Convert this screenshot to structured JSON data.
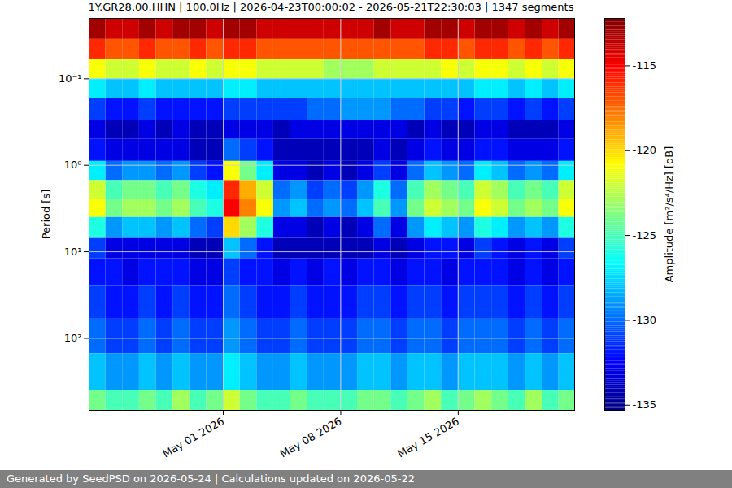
{
  "chart_data": {
    "type": "heatmap",
    "title": "1Y.GR28.00.HHN | 100.0Hz | 2026-04-23T00:00:02 - 2026-05-21T22:30:03 | 1347 segments",
    "footer": "Generated by SeedPSD on 2026-05-24 | Calculations updated on 2026-05-22",
    "ylabel": "Period [s]",
    "colorbar_label": "Amplitude [m²/s⁴/Hz] [dB]",
    "log": "y",
    "grid": true,
    "xlim": [
      "2026-04-23T00:00:02",
      "2026-05-21T22:30:03"
    ],
    "xticks": [
      {
        "value": "2026-05-01",
        "label": "May 01 2026"
      },
      {
        "value": "2026-05-08",
        "label": "May 08 2026"
      },
      {
        "value": "2026-05-15",
        "label": "May 15 2026"
      }
    ],
    "ylim": [
      0.02,
      680
    ],
    "yticks": [
      {
        "value": 0.1,
        "label": "10⁻¹"
      },
      {
        "value": 1,
        "label": "10⁰"
      },
      {
        "value": 10,
        "label": "10¹"
      },
      {
        "value": 100,
        "label": "10²"
      }
    ],
    "colorbar_range": [
      -135.3,
      -112.2
    ],
    "colorbar_ticks": [
      -135,
      -130,
      -125,
      -120,
      -115
    ],
    "x_edges": [
      "2026-04-23",
      "2026-04-24",
      "2026-04-25",
      "2026-04-26",
      "2026-04-27",
      "2026-04-28",
      "2026-04-29",
      "2026-04-30",
      "2026-05-01",
      "2026-05-02",
      "2026-05-03",
      "2026-05-04",
      "2026-05-05",
      "2026-05-06",
      "2026-05-07",
      "2026-05-08",
      "2026-05-09",
      "2026-05-10",
      "2026-05-11",
      "2026-05-12",
      "2026-05-13",
      "2026-05-14",
      "2026-05-15",
      "2026-05-16",
      "2026-05-17",
      "2026-05-18",
      "2026-05-19",
      "2026-05-20",
      "2026-05-21",
      "2026-05-21T22:30:03"
    ],
    "period_edges": [
      0.02,
      0.035,
      0.06,
      0.1,
      0.17,
      0.3,
      0.5,
      0.9,
      1.5,
      2.5,
      4,
      7,
      12,
      25,
      60,
      150,
      400,
      680
    ],
    "cells": [
      [
        -113,
        -114,
        -114,
        -113,
        -114,
        -113,
        -113,
        -114,
        -113,
        -113,
        -114,
        -114,
        -114,
        -114,
        -114,
        -114,
        -114,
        -113,
        -114,
        -114,
        -113,
        -113,
        -114,
        -113,
        -113,
        -114,
        -113,
        -114,
        -113
      ],
      [
        -116,
        -117,
        -117,
        -116,
        -117,
        -117,
        -116,
        -117,
        -116,
        -116,
        -117,
        -117,
        -117,
        -117,
        -117,
        -117,
        -117,
        -117,
        -117,
        -117,
        -116,
        -116,
        -117,
        -116,
        -116,
        -117,
        -116,
        -117,
        -116
      ],
      [
        -121,
        -122,
        -122,
        -121,
        -122,
        -122,
        -121,
        -122,
        -121,
        -121,
        -122,
        -122,
        -122,
        -122,
        -123,
        -123,
        -123,
        -122,
        -122,
        -122,
        -122,
        -121,
        -122,
        -121,
        -121,
        -122,
        -121,
        -122,
        -121
      ],
      [
        -127,
        -128,
        -128,
        -127,
        -128,
        -128,
        -128,
        -128,
        -127,
        -127,
        -128,
        -128,
        -128,
        -128,
        -128,
        -128,
        -128,
        -128,
        -128,
        -128,
        -128,
        -128,
        -128,
        -127,
        -127,
        -128,
        -127,
        -128,
        -127
      ],
      [
        -131,
        -132,
        -132,
        -131,
        -132,
        -132,
        -132,
        -132,
        -131,
        -131,
        -131,
        -131,
        -131,
        -130,
        -130,
        -129,
        -129,
        -129,
        -130,
        -130,
        -131,
        -131,
        -132,
        -131,
        -131,
        -132,
        -131,
        -132,
        -131
      ],
      [
        -133,
        -134,
        -134,
        -133,
        -134,
        -133,
        -134,
        -134,
        -133,
        -133,
        -133,
        -134,
        -133,
        -133,
        -133,
        -133,
        -133,
        -133,
        -133,
        -134,
        -133,
        -134,
        -134,
        -133,
        -133,
        -134,
        -134,
        -134,
        -133
      ],
      [
        -132,
        -133,
        -133,
        -133,
        -133,
        -133,
        -134,
        -134,
        -130,
        -131,
        -132,
        -134,
        -134,
        -134,
        -134,
        -134,
        -134,
        -133,
        -134,
        -133,
        -132,
        -133,
        -133,
        -132,
        -132,
        -133,
        -133,
        -133,
        -132
      ],
      [
        -127,
        -130,
        -129,
        -129,
        -130,
        -129,
        -131,
        -132,
        -121,
        -124,
        -127,
        -133,
        -133,
        -134,
        -133,
        -134,
        -133,
        -131,
        -133,
        -130,
        -128,
        -129,
        -130,
        -127,
        -128,
        -130,
        -129,
        -130,
        -127
      ],
      [
        -122,
        -125,
        -124,
        -124,
        -125,
        -124,
        -126,
        -127,
        -116,
        -119,
        -122,
        -130,
        -129,
        -131,
        -130,
        -131,
        -129,
        -126,
        -130,
        -125,
        -123,
        -124,
        -125,
        -122,
        -123,
        -125,
        -124,
        -125,
        -122
      ],
      [
        -121,
        -124,
        -123,
        -123,
        -124,
        -123,
        -125,
        -126,
        -115,
        -118,
        -121,
        -129,
        -128,
        -130,
        -129,
        -130,
        -128,
        -125,
        -129,
        -124,
        -122,
        -123,
        -124,
        -121,
        -122,
        -124,
        -123,
        -124,
        -121
      ],
      [
        -126,
        -129,
        -128,
        -128,
        -129,
        -128,
        -130,
        -131,
        -120,
        -123,
        -126,
        -133,
        -133,
        -134,
        -133,
        -134,
        -133,
        -130,
        -133,
        -129,
        -127,
        -128,
        -129,
        -126,
        -127,
        -129,
        -128,
        -129,
        -126
      ],
      [
        -131,
        -133,
        -133,
        -133,
        -133,
        -133,
        -134,
        -134,
        -128,
        -130,
        -132,
        -134,
        -134,
        -134,
        -134,
        -134,
        -134,
        -133,
        -134,
        -133,
        -132,
        -132,
        -133,
        -131,
        -132,
        -133,
        -132,
        -133,
        -131
      ],
      [
        -132,
        -132,
        -133,
        -132,
        -132,
        -132,
        -133,
        -133,
        -131,
        -132,
        -132,
        -133,
        -132,
        -133,
        -132,
        -133,
        -132,
        -132,
        -133,
        -132,
        -132,
        -133,
        -132,
        -132,
        -132,
        -133,
        -132,
        -133,
        -132
      ],
      [
        -131,
        -132,
        -132,
        -131,
        -132,
        -131,
        -132,
        -132,
        -130,
        -131,
        -132,
        -132,
        -131,
        -132,
        -132,
        -132,
        -131,
        -131,
        -132,
        -131,
        -131,
        -132,
        -131,
        -131,
        -131,
        -132,
        -131,
        -132,
        -131
      ],
      [
        -130,
        -131,
        -131,
        -130,
        -131,
        -130,
        -131,
        -131,
        -129,
        -130,
        -131,
        -131,
        -130,
        -131,
        -131,
        -131,
        -130,
        -130,
        -131,
        -130,
        -130,
        -131,
        -130,
        -130,
        -130,
        -131,
        -130,
        -131,
        -130
      ],
      [
        -128,
        -129,
        -129,
        -128,
        -129,
        -128,
        -129,
        -129,
        -127,
        -128,
        -129,
        -129,
        -128,
        -129,
        -129,
        -129,
        -128,
        -128,
        -129,
        -128,
        -128,
        -129,
        -128,
        -128,
        -128,
        -129,
        -128,
        -129,
        -128
      ],
      [
        -124,
        -125,
        -125,
        -124,
        -125,
        -123,
        -125,
        -124,
        -122,
        -124,
        -125,
        -125,
        -124,
        -125,
        -125,
        -125,
        -124,
        -124,
        -125,
        -124,
        -123,
        -125,
        -124,
        -123,
        -124,
        -125,
        -123,
        -125,
        -124
      ]
    ]
  }
}
